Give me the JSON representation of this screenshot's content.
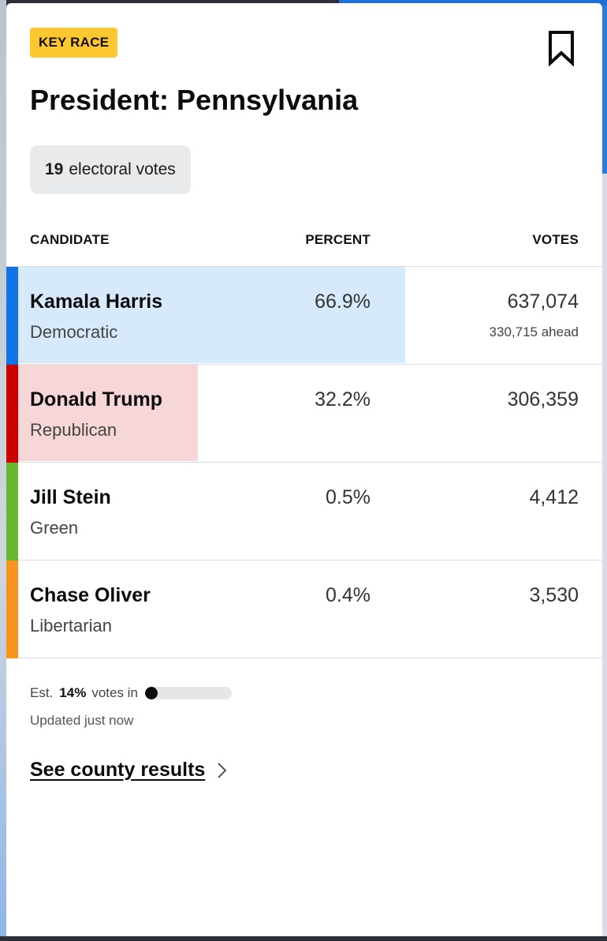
{
  "badge": "KEY RACE",
  "title": "President: Pennsylvania",
  "electoral": {
    "count": "19",
    "label": "electoral votes"
  },
  "headers": {
    "candidate": "CANDIDATE",
    "percent": "PERCENT",
    "votes": "VOTES"
  },
  "candidates": [
    {
      "name": "Kamala Harris",
      "party": "Democratic",
      "percent": "66.9%",
      "votes": "637,074",
      "ahead": "330,715 ahead",
      "share": 0.669,
      "color": "#1273e6",
      "tint": "#d6eafb"
    },
    {
      "name": "Donald Trump",
      "party": "Republican",
      "percent": "32.2%",
      "votes": "306,359",
      "ahead": "",
      "share": 0.322,
      "color": "#cc0000",
      "tint": "#f6d6d6"
    },
    {
      "name": "Jill Stein",
      "party": "Green",
      "percent": "0.5%",
      "votes": "4,412",
      "ahead": "",
      "share": 0.005,
      "color": "#68b72f",
      "tint": "#e3f1d8"
    },
    {
      "name": "Chase Oliver",
      "party": "Libertarian",
      "percent": "0.4%",
      "votes": "3,530",
      "ahead": "",
      "share": 0.004,
      "color": "#f7941d",
      "tint": "#fde8cf"
    }
  ],
  "footer": {
    "est_prefix": "Est.",
    "est_percent": "14%",
    "est_suffix": "votes in",
    "reporting_fraction": 0.14,
    "updated": "Updated just now",
    "county_link": "See county results"
  },
  "icons": {
    "bookmark": "bookmark-icon",
    "chevron": "chevron-right-icon"
  }
}
